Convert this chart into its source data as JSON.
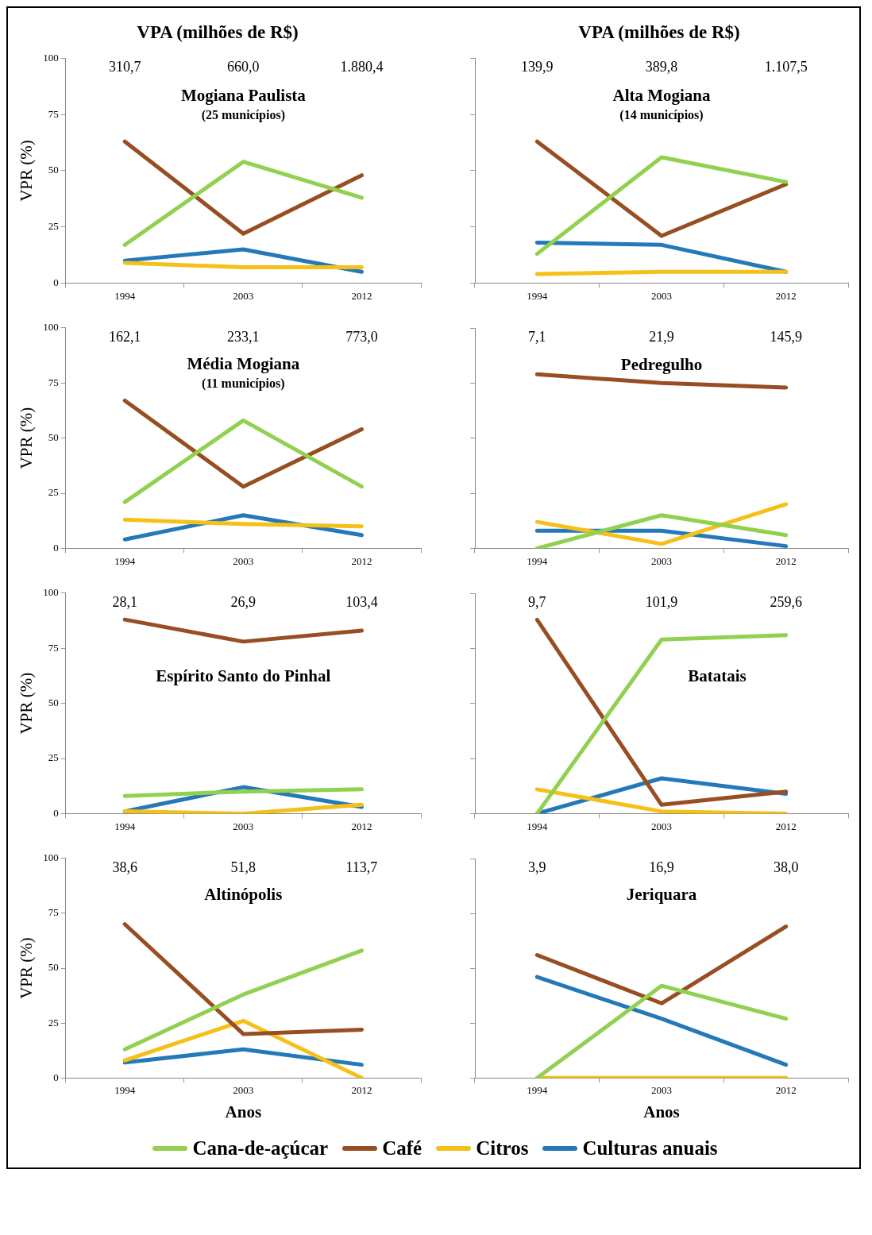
{
  "chart_data": [
    {
      "type": "line",
      "title": "VPA (milhões de R$)",
      "subtitle": "Mogiana Paulista",
      "ylabel": "VPR (%)",
      "categories": [
        "1994",
        "2003",
        "2012"
      ],
      "ylim": [
        0,
        100
      ],
      "yticks": [
        0,
        25,
        50,
        75,
        100
      ],
      "marker": "none",
      "legend": "bottom",
      "annotations": [
        "310,7",
        "660,0",
        "1.880,4",
        "(25 municípios)"
      ],
      "series": [
        {
          "name": "Cana-de-açúcar",
          "color": "#92d050",
          "values": [
            17,
            54,
            38
          ]
        },
        {
          "name": "Café",
          "color": "#984e23",
          "values": [
            63,
            22,
            48
          ]
        },
        {
          "name": "Citros",
          "color": "#f5c018",
          "values": [
            9,
            7,
            7
          ]
        },
        {
          "name": "Culturas anuais",
          "color": "#2479b8",
          "values": [
            10,
            15,
            5
          ]
        }
      ]
    },
    {
      "type": "line",
      "title": "VPA (milhões de R$)",
      "subtitle": "Alta Mogiana",
      "categories": [
        "1994",
        "2003",
        "2012"
      ],
      "ylim": [
        0,
        100
      ],
      "yticks": [
        0,
        25,
        50,
        75,
        100
      ],
      "tick_labels": "x",
      "marker": "none",
      "annotations": [
        "139,9",
        "389,8",
        "1.107,5",
        "(14 municípios)"
      ],
      "series": [
        {
          "color": "#92d050",
          "values": [
            13,
            56,
            45
          ]
        },
        {
          "color": "#984e23",
          "values": [
            63,
            21,
            44
          ]
        },
        {
          "color": "#f5c018",
          "values": [
            4,
            5,
            5
          ]
        },
        {
          "color": "#2479b8",
          "values": [
            18,
            17,
            5
          ]
        }
      ]
    },
    {
      "type": "line",
      "subtitle": "Média Mogiana",
      "ylabel": "VPR (%)",
      "categories": [
        "1994",
        "2003",
        "2012"
      ],
      "ylim": [
        0,
        100
      ],
      "yticks": [
        0,
        25,
        50,
        75,
        100
      ],
      "marker": "none",
      "annotations": [
        "162,1",
        "233,1",
        "773,0",
        "(11 municípios)"
      ],
      "series": [
        {
          "color": "#92d050",
          "values": [
            21,
            58,
            28
          ]
        },
        {
          "color": "#984e23",
          "values": [
            67,
            28,
            54
          ]
        },
        {
          "color": "#f5c018",
          "values": [
            13,
            11,
            10
          ]
        },
        {
          "color": "#2479b8",
          "values": [
            4,
            15,
            6
          ]
        }
      ]
    },
    {
      "type": "line",
      "subtitle": "Pedregulho",
      "categories": [
        "1994",
        "2003",
        "2012"
      ],
      "ylim": [
        0,
        100
      ],
      "yticks": [
        0,
        25,
        50,
        75,
        100
      ],
      "tick_labels": "x",
      "marker": "none",
      "annotations": [
        "7,1",
        "21,9",
        "145,9"
      ],
      "series": [
        {
          "color": "#92d050",
          "values": [
            0,
            15,
            6
          ]
        },
        {
          "color": "#984e23",
          "values": [
            79,
            75,
            73
          ]
        },
        {
          "color": "#f5c018",
          "values": [
            12,
            2,
            20
          ]
        },
        {
          "color": "#2479b8",
          "values": [
            8,
            8,
            1
          ]
        }
      ]
    },
    {
      "type": "line",
      "subtitle": "Espírito Santo do Pinhal",
      "ylabel": "VPR (%)",
      "categories": [
        "1994",
        "2003",
        "2012"
      ],
      "ylim": [
        0,
        100
      ],
      "yticks": [
        0,
        25,
        50,
        75,
        100
      ],
      "marker": "none",
      "annotations": [
        "28,1",
        "26,9",
        "103,4"
      ],
      "series": [
        {
          "color": "#92d050",
          "values": [
            8,
            10,
            11
          ]
        },
        {
          "color": "#984e23",
          "values": [
            88,
            78,
            83
          ]
        },
        {
          "color": "#f5c018",
          "values": [
            1,
            0,
            4
          ]
        },
        {
          "color": "#2479b8",
          "values": [
            1,
            12,
            3
          ]
        }
      ]
    },
    {
      "type": "line",
      "subtitle": "Batatais",
      "categories": [
        "1994",
        "2003",
        "2012"
      ],
      "ylim": [
        0,
        100
      ],
      "yticks": [
        0,
        25,
        50,
        75,
        100
      ],
      "tick_labels": "x",
      "marker": "none",
      "annotations": [
        "9,7",
        "101,9",
        "259,6"
      ],
      "series": [
        {
          "color": "#92d050",
          "values": [
            0,
            79,
            81
          ]
        },
        {
          "color": "#984e23",
          "values": [
            88,
            4,
            10
          ]
        },
        {
          "color": "#f5c018",
          "values": [
            11,
            1,
            0
          ]
        },
        {
          "color": "#2479b8",
          "values": [
            0,
            16,
            9
          ]
        }
      ]
    },
    {
      "type": "line",
      "subtitle": "Altinópolis",
      "ylabel": "VPR (%)",
      "xlabel": "Anos",
      "categories": [
        "1994",
        "2003",
        "2012"
      ],
      "ylim": [
        0,
        100
      ],
      "yticks": [
        0,
        25,
        50,
        75,
        100
      ],
      "marker": "none",
      "annotations": [
        "38,6",
        "51,8",
        "113,7"
      ],
      "series": [
        {
          "color": "#92d050",
          "values": [
            13,
            38,
            58
          ]
        },
        {
          "color": "#984e23",
          "values": [
            70,
            20,
            22
          ]
        },
        {
          "color": "#f5c018",
          "values": [
            8,
            26,
            0
          ]
        },
        {
          "color": "#2479b8",
          "values": [
            7,
            13,
            6
          ]
        }
      ]
    },
    {
      "type": "line",
      "subtitle": "Jeriquara",
      "xlabel": "Anos",
      "categories": [
        "1994",
        "2003",
        "2012"
      ],
      "ylim": [
        0,
        100
      ],
      "yticks": [
        0,
        25,
        50,
        75,
        100
      ],
      "tick_labels": "x",
      "marker": "none",
      "annotations": [
        "3,9",
        "16,9",
        "38,0"
      ],
      "series": [
        {
          "color": "#92d050",
          "values": [
            0,
            42,
            27
          ]
        },
        {
          "color": "#984e23",
          "values": [
            56,
            34,
            69
          ]
        },
        {
          "color": "#f5c018",
          "values": [
            0,
            0,
            0
          ]
        },
        {
          "color": "#2479b8",
          "values": [
            46,
            27,
            6
          ]
        }
      ]
    }
  ]
}
